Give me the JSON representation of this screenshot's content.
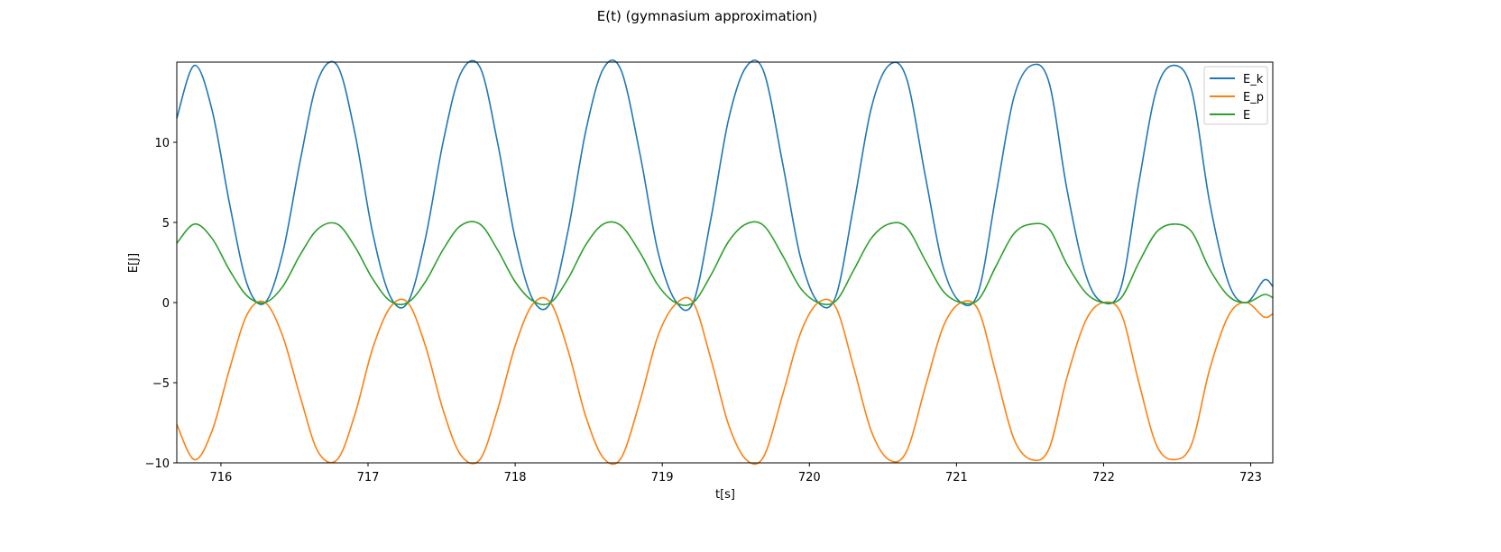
{
  "figure": {
    "title": "E(t) (gymnasium approximation)"
  },
  "chart_data": {
    "type": "line",
    "title": "E(t) (gymnasium approximation)",
    "xlabel": "t[s]",
    "ylabel": "E[J]",
    "xlim": [
      715.7,
      723.15
    ],
    "ylim": [
      -10,
      15
    ],
    "xticks": [
      716,
      717,
      718,
      719,
      720,
      721,
      722,
      723
    ],
    "yticks": [
      -10,
      -5,
      0,
      5,
      10
    ],
    "xtick_labels": [
      "716",
      "717",
      "718",
      "719",
      "720",
      "721",
      "722",
      "723"
    ],
    "ytick_labels": [
      "−10",
      "−5",
      "0",
      "5",
      "10"
    ],
    "grid": false,
    "legend_position": "top-right",
    "series": [
      {
        "name": "E_k",
        "color": "#1f77b4",
        "t": [
          715.7,
          715.82,
          715.94,
          716.06,
          716.18,
          716.3,
          716.42,
          716.54,
          716.66,
          716.79,
          716.91,
          717.03,
          717.15,
          717.27,
          717.39,
          717.51,
          717.63,
          717.76,
          717.88,
          718.0,
          718.12,
          718.24,
          718.36,
          718.48,
          718.6,
          718.72,
          718.85,
          718.97,
          719.09,
          719.21,
          719.33,
          719.45,
          719.57,
          719.69,
          719.82,
          719.94,
          720.06,
          720.18,
          720.3,
          720.42,
          720.54,
          720.66,
          720.79,
          720.91,
          721.03,
          721.15,
          721.27,
          721.39,
          721.51,
          721.63,
          721.75,
          721.88,
          722.0,
          722.12,
          722.24,
          722.36,
          722.48,
          722.6,
          722.72,
          722.85,
          722.97,
          723.09,
          723.15
        ],
        "values": [
          11.5,
          14.8,
          12.0,
          6.1,
          1.1,
          0.0,
          3.1,
          8.9,
          13.9,
          14.8,
          10.6,
          4.4,
          0.4,
          0.0,
          4.0,
          10.0,
          14.3,
          14.7,
          10.0,
          4.0,
          0.2,
          0.0,
          4.5,
          10.7,
          14.6,
          14.5,
          9.2,
          3.2,
          0.1,
          0.0,
          5.2,
          11.4,
          14.7,
          14.4,
          8.6,
          2.8,
          0.0,
          0.4,
          6.0,
          12.1,
          14.8,
          14.0,
          7.8,
          2.2,
          0.0,
          0.7,
          6.8,
          12.8,
          14.8,
          13.7,
          7.1,
          1.7,
          0.0,
          1.0,
          7.5,
          13.3,
          14.8,
          13.2,
          6.3,
          1.2,
          0.0,
          1.4,
          1.0
        ]
      },
      {
        "name": "E_p",
        "color": "#ff7f0e",
        "t": [
          715.7,
          715.82,
          715.94,
          716.06,
          716.18,
          716.3,
          716.42,
          716.54,
          716.66,
          716.79,
          716.91,
          717.03,
          717.15,
          717.27,
          717.39,
          717.51,
          717.63,
          717.76,
          717.88,
          718.0,
          718.12,
          718.24,
          718.36,
          718.48,
          718.6,
          718.72,
          718.85,
          718.97,
          719.09,
          719.21,
          719.33,
          719.45,
          719.57,
          719.69,
          719.82,
          719.94,
          720.06,
          720.18,
          720.3,
          720.42,
          720.54,
          720.66,
          720.79,
          720.91,
          721.03,
          721.15,
          721.27,
          721.39,
          721.51,
          721.63,
          721.75,
          721.88,
          722.0,
          722.12,
          722.24,
          722.36,
          722.48,
          722.6,
          722.72,
          722.85,
          722.97,
          723.09,
          723.15
        ],
        "values": [
          -7.6,
          -9.8,
          -8.0,
          -4.1,
          -0.7,
          0.0,
          -2.1,
          -5.9,
          -9.3,
          -9.8,
          -7.0,
          -2.9,
          -0.3,
          0.0,
          -2.7,
          -6.7,
          -9.5,
          -9.8,
          -6.7,
          -2.7,
          -0.1,
          0.0,
          -3.0,
          -7.1,
          -9.7,
          -9.7,
          -6.1,
          -2.1,
          -0.1,
          0.0,
          -3.5,
          -7.6,
          -9.8,
          -9.6,
          -5.7,
          -1.9,
          0.0,
          -0.3,
          -4.0,
          -8.0,
          -9.8,
          -9.3,
          -5.2,
          -1.5,
          0.0,
          -0.5,
          -4.5,
          -8.5,
          -9.8,
          -9.1,
          -4.7,
          -1.1,
          0.0,
          -0.7,
          -5.0,
          -8.9,
          -9.8,
          -8.8,
          -4.2,
          -0.8,
          0.0,
          -0.9,
          -0.7
        ]
      },
      {
        "name": "E",
        "color": "#2ca02c",
        "t": [
          715.7,
          715.82,
          715.94,
          716.06,
          716.18,
          716.3,
          716.42,
          716.54,
          716.66,
          716.79,
          716.91,
          717.03,
          717.15,
          717.27,
          717.39,
          717.51,
          717.63,
          717.76,
          717.88,
          718.0,
          718.12,
          718.24,
          718.36,
          718.48,
          718.6,
          718.72,
          718.85,
          718.97,
          719.09,
          719.21,
          719.33,
          719.45,
          719.57,
          719.69,
          719.82,
          719.94,
          720.06,
          720.18,
          720.3,
          720.42,
          720.54,
          720.66,
          720.79,
          720.91,
          721.03,
          721.15,
          721.27,
          721.39,
          721.51,
          721.63,
          721.75,
          721.88,
          722.0,
          722.12,
          722.24,
          722.36,
          722.48,
          722.6,
          722.72,
          722.85,
          722.97,
          723.09,
          723.15
        ],
        "values": [
          3.7,
          4.9,
          4.0,
          2.0,
          0.4,
          0.0,
          1.0,
          3.0,
          4.6,
          4.9,
          3.5,
          1.5,
          0.1,
          0.0,
          1.3,
          3.3,
          4.8,
          4.9,
          3.3,
          1.3,
          0.1,
          0.0,
          1.5,
          3.6,
          4.9,
          4.8,
          3.1,
          1.1,
          0.0,
          0.0,
          1.7,
          3.8,
          4.9,
          4.8,
          2.9,
          0.9,
          0.0,
          0.1,
          2.0,
          4.0,
          4.9,
          4.7,
          2.6,
          0.7,
          0.0,
          0.2,
          2.3,
          4.3,
          4.9,
          4.6,
          2.4,
          0.6,
          0.0,
          0.3,
          2.5,
          4.4,
          4.9,
          4.4,
          2.1,
          0.4,
          0.0,
          0.5,
          0.3
        ]
      }
    ]
  }
}
